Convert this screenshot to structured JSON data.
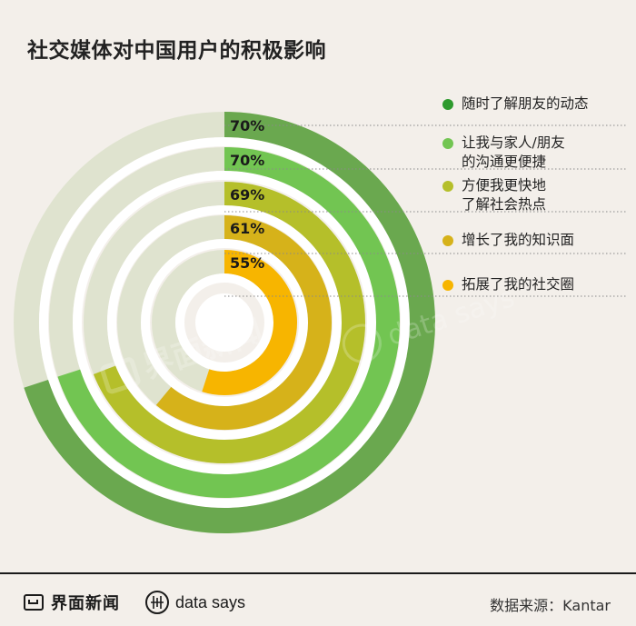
{
  "title": "社交媒体对中国用户的积极影响",
  "chart_data": {
    "type": "radial-bar",
    "series": [
      {
        "label": "随时了解朋友的动态",
        "value": 70,
        "value_label": "70%",
        "color": "#6aa84f"
      },
      {
        "label": "让我与家人/朋友\n的沟通更便捷",
        "value": 70,
        "value_label": "70%",
        "color": "#72c552"
      },
      {
        "label": "方便我更快地\n了解社会热点",
        "value": 69,
        "value_label": "69%",
        "color": "#b5bf2a"
      },
      {
        "label": "增长了我的知识面",
        "value": 61,
        "value_label": "61%",
        "color": "#d6b21a"
      },
      {
        "label": "拓展了我的社交圈",
        "value": 55,
        "value_label": "55%",
        "color": "#f7b500"
      }
    ],
    "max": 100,
    "track_color": "#dfe3cf"
  },
  "legend_dot_colors": [
    "#2e9a2e",
    "#72c552",
    "#b5bf2a",
    "#d6b21a",
    "#f7b500"
  ],
  "watermark": {
    "jiemian": "界面新闻",
    "datasays": "data says"
  },
  "footer": {
    "logo_jiemian": "界面新闻",
    "logo_datasays": "data says",
    "source": "数据来源：Kantar"
  }
}
